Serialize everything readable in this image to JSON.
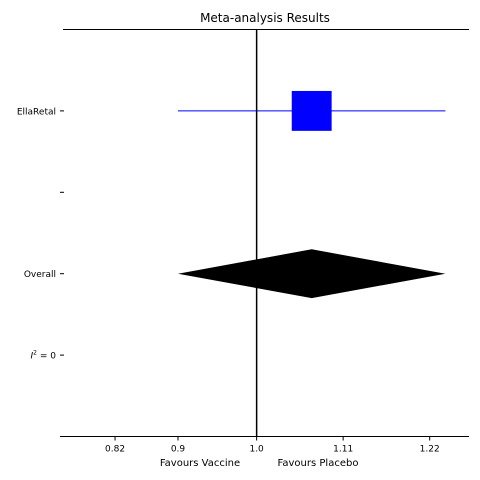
{
  "chart_data": {
    "type": "forest",
    "title": "Meta-analysis Results",
    "xlabel_left": "Favours Vaccine",
    "xlabel_right": "Favours Placebo",
    "x_ticks": [
      0.82,
      0.9,
      1.0,
      1.11,
      1.22
    ],
    "x_tick_labels": [
      "0.82",
      "0.9",
      "1.0",
      "1.11",
      "1.22"
    ],
    "xlim": [
      0.75,
      1.27
    ],
    "reference_line": 1.0,
    "rows": [
      {
        "label": "EllaRetal",
        "kind": "study",
        "estimate": 1.07,
        "ci_low": 0.9,
        "ci_high": 1.24,
        "color": "#0000ff"
      },
      {
        "label": "",
        "kind": "blank"
      },
      {
        "label": "Overall",
        "kind": "summary",
        "estimate": 1.07,
        "ci_low": 0.9,
        "ci_high": 1.24,
        "color": "#000000"
      },
      {
        "label": "I² = 0",
        "kind": "heterogeneity"
      }
    ]
  }
}
